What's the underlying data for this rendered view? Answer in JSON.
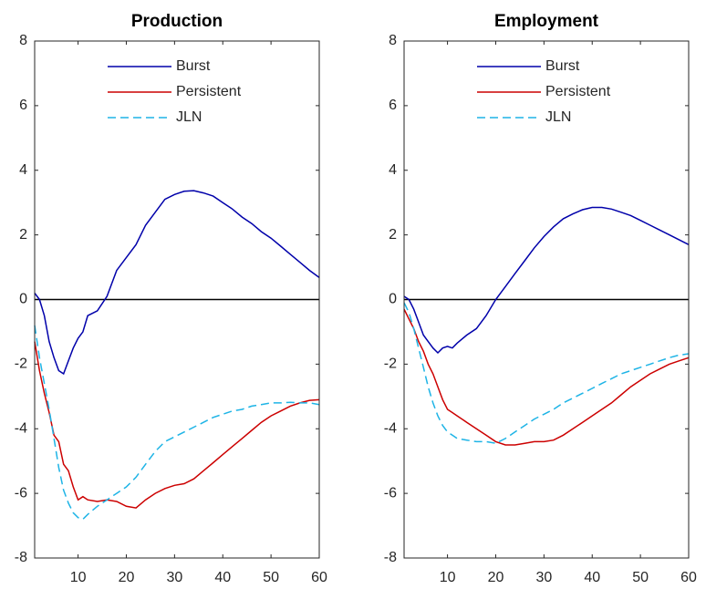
{
  "chart_data": [
    {
      "type": "line",
      "title": "Production",
      "x": [
        1,
        2,
        3,
        4,
        5,
        6,
        7,
        8,
        9,
        10,
        11,
        12,
        14,
        16,
        18,
        20,
        22,
        24,
        26,
        28,
        30,
        32,
        34,
        36,
        38,
        40,
        42,
        44,
        46,
        48,
        50,
        52,
        54,
        56,
        58,
        60
      ],
      "series": [
        {
          "name": "Burst",
          "color": "#0000aa",
          "style": "solid",
          "values": [
            0.2,
            0,
            -0.5,
            -1.3,
            -1.8,
            -2.2,
            -2.3,
            -1.9,
            -1.5,
            -1.2,
            -1.0,
            -0.5,
            -0.35,
            0.1,
            0.9,
            1.3,
            1.7,
            2.3,
            2.7,
            3.1,
            3.25,
            3.35,
            3.37,
            3.3,
            3.2,
            3.0,
            2.8,
            2.55,
            2.35,
            2.1,
            1.9,
            1.65,
            1.4,
            1.15,
            0.9,
            0.68
          ]
        },
        {
          "name": "Persistent",
          "color": "#cc0000",
          "style": "solid",
          "values": [
            -1.3,
            -2.2,
            -2.9,
            -3.5,
            -4.2,
            -4.4,
            -5.1,
            -5.3,
            -5.8,
            -6.2,
            -6.1,
            -6.2,
            -6.25,
            -6.2,
            -6.25,
            -6.4,
            -6.45,
            -6.2,
            -6.0,
            -5.85,
            -5.75,
            -5.7,
            -5.55,
            -5.3,
            -5.05,
            -4.8,
            -4.55,
            -4.3,
            -4.05,
            -3.8,
            -3.6,
            -3.45,
            -3.3,
            -3.2,
            -3.12,
            -3.1
          ]
        },
        {
          "name": "JLN",
          "color": "#1eb4e6",
          "style": "dashed",
          "values": [
            -0.8,
            -1.8,
            -2.6,
            -3.4,
            -4.3,
            -5.2,
            -5.9,
            -6.3,
            -6.6,
            -6.75,
            -6.8,
            -6.65,
            -6.4,
            -6.2,
            -6.0,
            -5.8,
            -5.5,
            -5.1,
            -4.7,
            -4.4,
            -4.25,
            -4.1,
            -3.95,
            -3.8,
            -3.65,
            -3.55,
            -3.45,
            -3.4,
            -3.3,
            -3.25,
            -3.2,
            -3.2,
            -3.18,
            -3.2,
            -3.2,
            -3.25
          ]
        }
      ],
      "xlim": [
        1,
        60
      ],
      "xticks": [
        10,
        20,
        30,
        40,
        50,
        60
      ],
      "ylim": [
        -8,
        8
      ],
      "yticks": [
        -8,
        -6,
        -4,
        -2,
        0,
        2,
        4,
        6,
        8
      ],
      "zero_line": 0,
      "legend": "top"
    },
    {
      "type": "line",
      "title": "Employment",
      "x": [
        1,
        2,
        3,
        4,
        5,
        6,
        7,
        8,
        9,
        10,
        11,
        12,
        14,
        16,
        18,
        20,
        22,
        24,
        26,
        28,
        30,
        32,
        34,
        36,
        38,
        40,
        42,
        44,
        46,
        48,
        50,
        52,
        54,
        56,
        58,
        60
      ],
      "series": [
        {
          "name": "Burst",
          "color": "#0000aa",
          "style": "solid",
          "values": [
            0.1,
            0,
            -0.3,
            -0.7,
            -1.1,
            -1.3,
            -1.5,
            -1.65,
            -1.5,
            -1.45,
            -1.5,
            -1.35,
            -1.1,
            -0.9,
            -0.5,
            0,
            0.4,
            0.8,
            1.2,
            1.6,
            1.95,
            2.25,
            2.5,
            2.65,
            2.78,
            2.85,
            2.85,
            2.8,
            2.7,
            2.6,
            2.45,
            2.3,
            2.15,
            2.0,
            1.85,
            1.7
          ]
        },
        {
          "name": "Persistent",
          "color": "#cc0000",
          "style": "solid",
          "values": [
            -0.3,
            -0.6,
            -0.9,
            -1.3,
            -1.6,
            -2.0,
            -2.3,
            -2.7,
            -3.1,
            -3.4,
            -3.5,
            -3.6,
            -3.8,
            -4.0,
            -4.2,
            -4.4,
            -4.5,
            -4.5,
            -4.45,
            -4.4,
            -4.4,
            -4.35,
            -4.2,
            -4.0,
            -3.8,
            -3.6,
            -3.4,
            -3.2,
            -2.95,
            -2.7,
            -2.5,
            -2.3,
            -2.15,
            -2.0,
            -1.9,
            -1.8
          ]
        },
        {
          "name": "JLN",
          "color": "#1eb4e6",
          "style": "dashed",
          "values": [
            -0.1,
            -0.4,
            -0.9,
            -1.5,
            -2.1,
            -2.7,
            -3.2,
            -3.6,
            -3.9,
            -4.1,
            -4.2,
            -4.3,
            -4.35,
            -4.4,
            -4.4,
            -4.45,
            -4.3,
            -4.1,
            -3.9,
            -3.7,
            -3.55,
            -3.4,
            -3.2,
            -3.05,
            -2.9,
            -2.75,
            -2.6,
            -2.45,
            -2.3,
            -2.2,
            -2.1,
            -2.0,
            -1.9,
            -1.8,
            -1.72,
            -1.68
          ]
        }
      ],
      "xlim": [
        1,
        60
      ],
      "xticks": [
        10,
        20,
        30,
        40,
        50,
        60
      ],
      "ylim": [
        -8,
        8
      ],
      "yticks": [
        -8,
        -6,
        -4,
        -2,
        0,
        2,
        4,
        6,
        8
      ],
      "zero_line": 0,
      "legend": "top"
    }
  ]
}
